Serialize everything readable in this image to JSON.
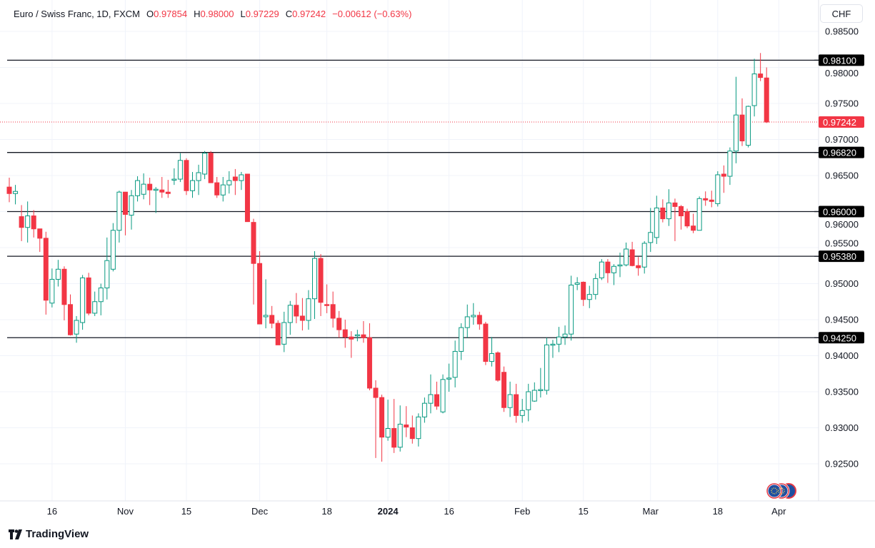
{
  "header": {
    "symbol": "Euro / Swiss Franc, 1D, FXCM",
    "o_label": "O",
    "o": "0.97854",
    "h_label": "H",
    "h": "0.98000",
    "l_label": "L",
    "l": "0.97229",
    "c_label": "C",
    "c": "0.97242",
    "change": "−0.00612 (−0.63%)"
  },
  "currency_button": "CHF",
  "footer": {
    "logo": "TradingView"
  },
  "colors": {
    "up": "#089981",
    "down": "#F23645",
    "level": "#131722",
    "current": "#F23645"
  },
  "chart_data": {
    "type": "candlestick",
    "title": "Euro / Swiss Franc, 1D, FXCM",
    "ylim": [
      0.921,
      0.9885
    ],
    "y_ticks": [
      "0.98500",
      "0.98000",
      "0.97500",
      "0.97000",
      "0.96500",
      "0.96000",
      "0.95500",
      "0.95000",
      "0.94500",
      "0.94000",
      "0.93500",
      "0.93000",
      "0.92500"
    ],
    "x_ticks": [
      {
        "label": "16",
        "index": 7
      },
      {
        "label": "Nov",
        "index": 19
      },
      {
        "label": "15",
        "index": 29
      },
      {
        "label": "Dec",
        "index": 41
      },
      {
        "label": "18",
        "index": 52
      },
      {
        "label": "2024",
        "index": 62,
        "bold": true
      },
      {
        "label": "16",
        "index": 72
      },
      {
        "label": "Feb",
        "index": 84
      },
      {
        "label": "15",
        "index": 94
      },
      {
        "label": "Mar",
        "index": 105
      },
      {
        "label": "18",
        "index": 116
      },
      {
        "label": "Apr",
        "index": 126
      }
    ],
    "levels": [
      {
        "price": 0.981,
        "label": "0.98100"
      },
      {
        "price": 0.9682,
        "label": "0.96820"
      },
      {
        "price": 0.96,
        "label": "0.96000"
      },
      {
        "price": 0.9538,
        "label": "0.95380"
      },
      {
        "price": 0.9425,
        "label": "0.94250"
      }
    ],
    "current": {
      "price": 0.97242,
      "label": "0.97242"
    },
    "ohlc": [
      [
        0.9634,
        0.9647,
        0.9613,
        0.9625
      ],
      [
        0.9625,
        0.9637,
        0.961,
        0.9628
      ],
      [
        0.9593,
        0.9609,
        0.9559,
        0.9578
      ],
      [
        0.9578,
        0.9614,
        0.9557,
        0.9594
      ],
      [
        0.9594,
        0.9602,
        0.9564,
        0.9576
      ],
      [
        0.9576,
        0.9576,
        0.9544,
        0.9563
      ],
      [
        0.9563,
        0.9572,
        0.9457,
        0.9477
      ],
      [
        0.9473,
        0.9521,
        0.9467,
        0.9506
      ],
      [
        0.9506,
        0.9533,
        0.9496,
        0.952
      ],
      [
        0.952,
        0.9524,
        0.9449,
        0.9471
      ],
      [
        0.9471,
        0.9485,
        0.9428,
        0.9429
      ],
      [
        0.943,
        0.9455,
        0.9418,
        0.9449
      ],
      [
        0.9446,
        0.9512,
        0.9436,
        0.9508
      ],
      [
        0.9508,
        0.9515,
        0.9456,
        0.9459
      ],
      [
        0.9459,
        0.9489,
        0.9455,
        0.9475
      ],
      [
        0.9475,
        0.95,
        0.9456,
        0.9494
      ],
      [
        0.9494,
        0.9564,
        0.9478,
        0.9532
      ],
      [
        0.952,
        0.9584,
        0.9517,
        0.9574
      ],
      [
        0.9574,
        0.9629,
        0.9557,
        0.9627
      ],
      [
        0.9627,
        0.9627,
        0.9567,
        0.9596
      ],
      [
        0.9595,
        0.963,
        0.9575,
        0.9622
      ],
      [
        0.9622,
        0.9649,
        0.9614,
        0.9643
      ],
      [
        0.9624,
        0.9653,
        0.9617,
        0.9638
      ],
      [
        0.9638,
        0.9647,
        0.9609,
        0.963
      ],
      [
        0.963,
        0.9634,
        0.9598,
        0.9631
      ],
      [
        0.963,
        0.9648,
        0.9619,
        0.9627
      ],
      [
        0.9627,
        0.9644,
        0.9619,
        0.9625
      ],
      [
        0.9644,
        0.966,
        0.9637,
        0.9645
      ],
      [
        0.9645,
        0.9681,
        0.9641,
        0.9671
      ],
      [
        0.9671,
        0.9674,
        0.9623,
        0.9629
      ],
      [
        0.9629,
        0.9655,
        0.9619,
        0.9643
      ],
      [
        0.9643,
        0.9665,
        0.9623,
        0.9654
      ],
      [
        0.9652,
        0.9684,
        0.9645,
        0.9681
      ],
      [
        0.9681,
        0.9684,
        0.964,
        0.964
      ],
      [
        0.964,
        0.9648,
        0.9619,
        0.9623
      ],
      [
        0.9623,
        0.9648,
        0.9614,
        0.9637
      ],
      [
        0.9637,
        0.9656,
        0.9625,
        0.9643
      ],
      [
        0.9648,
        0.9659,
        0.9623,
        0.9643
      ],
      [
        0.9643,
        0.9655,
        0.963,
        0.9651
      ],
      [
        0.9652,
        0.9652,
        0.9586,
        0.9586
      ],
      [
        0.9585,
        0.959,
        0.9471,
        0.9528
      ],
      [
        0.9528,
        0.9545,
        0.9444,
        0.9444
      ],
      [
        0.9454,
        0.9506,
        0.9438,
        0.9456
      ],
      [
        0.9456,
        0.9469,
        0.9438,
        0.9445
      ],
      [
        0.9445,
        0.9449,
        0.9415,
        0.9415
      ],
      [
        0.9416,
        0.9461,
        0.9405,
        0.9446
      ],
      [
        0.9446,
        0.9476,
        0.9429,
        0.947
      ],
      [
        0.947,
        0.9487,
        0.9445,
        0.9455
      ],
      [
        0.9455,
        0.948,
        0.9435,
        0.9449
      ],
      [
        0.9449,
        0.9491,
        0.9436,
        0.9479
      ],
      [
        0.9479,
        0.9545,
        0.9451,
        0.9535
      ],
      [
        0.9535,
        0.9541,
        0.9455,
        0.9474
      ],
      [
        0.9471,
        0.9499,
        0.9459,
        0.947
      ],
      [
        0.9471,
        0.9489,
        0.9439,
        0.9452
      ],
      [
        0.9452,
        0.9462,
        0.9425,
        0.9436
      ],
      [
        0.9436,
        0.945,
        0.9411,
        0.9426
      ],
      [
        0.9426,
        0.9434,
        0.9397,
        0.9423
      ],
      [
        0.9428,
        0.9436,
        0.942,
        0.9429
      ],
      [
        0.9429,
        0.9448,
        0.9418,
        0.9425
      ],
      [
        0.9425,
        0.9445,
        0.9352,
        0.9355
      ],
      [
        0.9355,
        0.9366,
        0.9258,
        0.9342
      ],
      [
        0.9342,
        0.9346,
        0.9253,
        0.9287
      ],
      [
        0.9287,
        0.9339,
        0.9282,
        0.9299
      ],
      [
        0.9299,
        0.934,
        0.9265,
        0.9273
      ],
      [
        0.9273,
        0.9331,
        0.9267,
        0.9305
      ],
      [
        0.9304,
        0.933,
        0.9287,
        0.9301
      ],
      [
        0.93,
        0.9317,
        0.9278,
        0.9285
      ],
      [
        0.9285,
        0.932,
        0.9274,
        0.9315
      ],
      [
        0.9315,
        0.9342,
        0.9307,
        0.9334
      ],
      [
        0.9334,
        0.9374,
        0.932,
        0.9346
      ],
      [
        0.9346,
        0.9364,
        0.9325,
        0.933
      ],
      [
        0.9322,
        0.9374,
        0.932,
        0.9367
      ],
      [
        0.9368,
        0.9389,
        0.935,
        0.9369
      ],
      [
        0.937,
        0.9421,
        0.9356,
        0.9406
      ],
      [
        0.9406,
        0.9445,
        0.9394,
        0.9439
      ],
      [
        0.9439,
        0.9471,
        0.9425,
        0.9454
      ],
      [
        0.9454,
        0.9473,
        0.9443,
        0.9456
      ],
      [
        0.9456,
        0.9461,
        0.9436,
        0.9444
      ],
      [
        0.9444,
        0.9447,
        0.9387,
        0.9392
      ],
      [
        0.9392,
        0.9426,
        0.9385,
        0.9403
      ],
      [
        0.9404,
        0.9406,
        0.9364,
        0.9366
      ],
      [
        0.9377,
        0.9385,
        0.9322,
        0.9328
      ],
      [
        0.9328,
        0.9364,
        0.9315,
        0.9346
      ],
      [
        0.9346,
        0.9361,
        0.9307,
        0.9317
      ],
      [
        0.9317,
        0.934,
        0.9307,
        0.9324
      ],
      [
        0.9325,
        0.9361,
        0.9309,
        0.935
      ],
      [
        0.9337,
        0.9363,
        0.9336,
        0.9352
      ],
      [
        0.9352,
        0.9383,
        0.9342,
        0.9353
      ],
      [
        0.9352,
        0.9425,
        0.9346,
        0.9415
      ],
      [
        0.9415,
        0.9422,
        0.9397,
        0.9416
      ],
      [
        0.9416,
        0.944,
        0.9405,
        0.9426
      ],
      [
        0.9426,
        0.9442,
        0.9415,
        0.943
      ],
      [
        0.943,
        0.9511,
        0.9421,
        0.9498
      ],
      [
        0.9499,
        0.9509,
        0.9491,
        0.9501
      ],
      [
        0.9502,
        0.9503,
        0.9469,
        0.9478
      ],
      [
        0.9478,
        0.9497,
        0.9466,
        0.9485
      ],
      [
        0.9485,
        0.9514,
        0.9478,
        0.9507
      ],
      [
        0.9508,
        0.9534,
        0.9505,
        0.953
      ],
      [
        0.953,
        0.9534,
        0.9501,
        0.9515
      ],
      [
        0.9515,
        0.9527,
        0.9498,
        0.9524
      ],
      [
        0.9525,
        0.9543,
        0.9509,
        0.9526
      ],
      [
        0.9526,
        0.9557,
        0.9524,
        0.9548
      ],
      [
        0.9547,
        0.9558,
        0.9524,
        0.9525
      ],
      [
        0.9525,
        0.9537,
        0.9511,
        0.9522
      ],
      [
        0.9523,
        0.9559,
        0.9514,
        0.9556
      ],
      [
        0.9557,
        0.9605,
        0.9544,
        0.9571
      ],
      [
        0.9564,
        0.9622,
        0.9555,
        0.9605
      ],
      [
        0.9605,
        0.9617,
        0.9585,
        0.959
      ],
      [
        0.959,
        0.9631,
        0.958,
        0.9612
      ],
      [
        0.9612,
        0.9618,
        0.9559,
        0.9607
      ],
      [
        0.9607,
        0.9609,
        0.9575,
        0.9594
      ],
      [
        0.96,
        0.9604,
        0.9577,
        0.958
      ],
      [
        0.958,
        0.9597,
        0.957,
        0.9574
      ],
      [
        0.9574,
        0.9621,
        0.9574,
        0.9618
      ],
      [
        0.9618,
        0.9628,
        0.9608,
        0.9616
      ],
      [
        0.9616,
        0.9629,
        0.9606,
        0.9614
      ],
      [
        0.9611,
        0.9656,
        0.9607,
        0.9651
      ],
      [
        0.9652,
        0.9664,
        0.9626,
        0.9649
      ],
      [
        0.9649,
        0.9689,
        0.9637,
        0.9684
      ],
      [
        0.9684,
        0.9787,
        0.9667,
        0.9734
      ],
      [
        0.9734,
        0.9757,
        0.9691,
        0.9698
      ],
      [
        0.9692,
        0.9747,
        0.9689,
        0.9746
      ],
      [
        0.9747,
        0.9812,
        0.9732,
        0.9791
      ],
      [
        0.9791,
        0.982,
        0.9781,
        0.9786
      ],
      [
        0.97854,
        0.98,
        0.97229,
        0.97242
      ]
    ]
  }
}
